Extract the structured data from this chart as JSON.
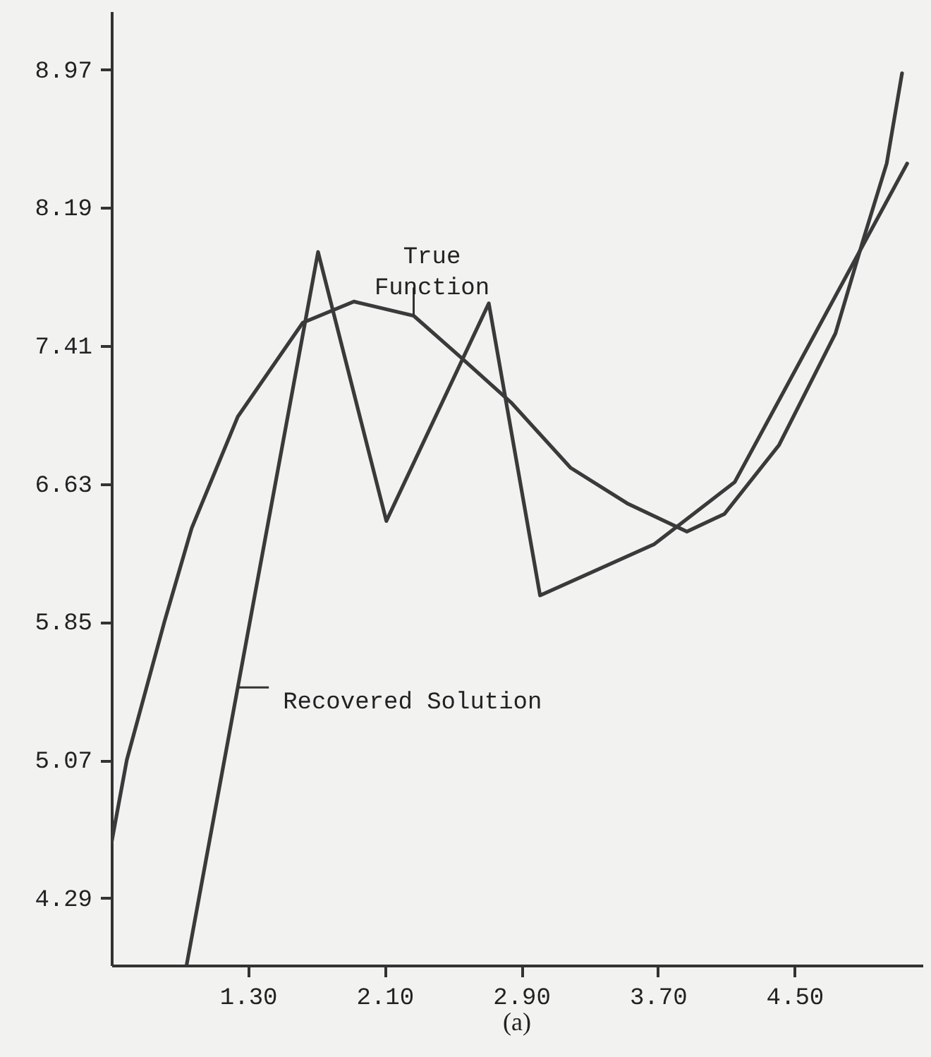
{
  "chart_data": {
    "type": "line",
    "xlim": [
      0.5,
      5.25
    ],
    "ylim": [
      3.91,
      9.3
    ],
    "xticks": [
      {
        "value": 1.3,
        "label": "1.30"
      },
      {
        "value": 2.1,
        "label": "2.10"
      },
      {
        "value": 2.9,
        "label": "2.90"
      },
      {
        "value": 3.7,
        "label": "3.70"
      },
      {
        "value": 4.5,
        "label": "4.50"
      }
    ],
    "yticks": [
      4.29,
      5.07,
      5.85,
      6.63,
      7.41,
      8.19,
      8.97
    ],
    "series": [
      {
        "color": "#3a3a3a",
        "x": [
          0.5,
          0.59,
          0.81,
          0.97,
          1.24,
          1.62,
          1.92,
          2.27,
          2.54,
          2.84,
          3.19,
          3.52,
          3.87,
          4.09,
          4.41,
          4.74,
          4.9,
          5.04,
          5.13
        ],
        "values": [
          4.6,
          5.07,
          5.85,
          6.38,
          7.01,
          7.54,
          7.66,
          7.58,
          7.35,
          7.09,
          6.72,
          6.52,
          6.36,
          6.46,
          6.85,
          7.48,
          8.0,
          8.44,
          8.95
        ]
      },
      {
        "color": "#3a3a3a",
        "x": [
          0.94,
          1.71,
          2.11,
          2.71,
          3.01,
          3.68,
          4.15,
          5.16
        ],
        "values": [
          3.91,
          7.94,
          6.42,
          7.65,
          6.0,
          6.29,
          6.64,
          8.44
        ]
      }
    ],
    "annotations": [
      {
        "text": "True Function",
        "x": 2.27,
        "y": 7.58
      },
      {
        "text": "Recovered Solution",
        "x": 1.24,
        "y": 5.48
      },
      "(a)"
    ]
  }
}
